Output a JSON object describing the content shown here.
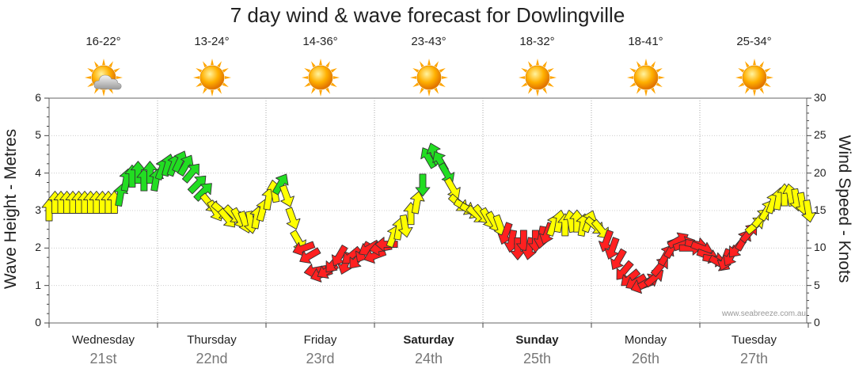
{
  "chart_data": {
    "type": "line",
    "title": "7 day wind & wave forecast for Dowlingville",
    "y_left_label": "Wave Height - Metres",
    "y_right_label": "Wind Speed - Knots",
    "y_left_range": [
      0,
      6
    ],
    "y_right_range": [
      0,
      30
    ],
    "y_left_ticks": [
      "0",
      "1",
      "2",
      "3",
      "4",
      "5",
      "6"
    ],
    "y_right_ticks": [
      "0",
      "5",
      "10",
      "15",
      "20",
      "25",
      "30"
    ],
    "credit": "www.seabreeze.com.au",
    "x_range_hours": [
      0,
      168
    ],
    "days": [
      {
        "name": "Wednesday",
        "date": "21st",
        "temp": "16-22°",
        "icon": "sun-cloud-icon",
        "bold": false
      },
      {
        "name": "Thursday",
        "date": "22nd",
        "temp": "13-24°",
        "icon": "sun-icon",
        "bold": false
      },
      {
        "name": "Friday",
        "date": "23rd",
        "temp": "14-36°",
        "icon": "sun-icon",
        "bold": false
      },
      {
        "name": "Saturday",
        "date": "24th",
        "temp": "23-43°",
        "icon": "sun-icon",
        "bold": true
      },
      {
        "name": "Sunday",
        "date": "25th",
        "temp": "18-32°",
        "icon": "sun-icon",
        "bold": true
      },
      {
        "name": "Monday",
        "date": "26th",
        "temp": "18-41°",
        "icon": "sun-icon",
        "bold": false
      },
      {
        "name": "Tuesday",
        "date": "27th",
        "temp": "25-34°",
        "icon": "sun-icon",
        "bold": false
      }
    ],
    "colors": {
      "onshore": "#ff2020",
      "cross": "#ffff00",
      "offshore": "#22dd22",
      "outline": "#333333",
      "grid": "#cccccc"
    },
    "wind_series": {
      "name": "Wind Speed",
      "unit": "knots",
      "points": [
        {
          "h": 0,
          "v": 15,
          "dir": 0,
          "c": "cross"
        },
        {
          "h": 2,
          "v": 16,
          "dir": 0,
          "c": "cross"
        },
        {
          "h": 4,
          "v": 16,
          "dir": 0,
          "c": "cross"
        },
        {
          "h": 6,
          "v": 16,
          "dir": 0,
          "c": "cross"
        },
        {
          "h": 8,
          "v": 16,
          "dir": 0,
          "c": "cross"
        },
        {
          "h": 10,
          "v": 16,
          "dir": 0,
          "c": "cross"
        },
        {
          "h": 12,
          "v": 16,
          "dir": 0,
          "c": "cross"
        },
        {
          "h": 14,
          "v": 16,
          "dir": 0,
          "c": "cross"
        },
        {
          "h": 16,
          "v": 16,
          "dir": 0,
          "c": "cross"
        },
        {
          "h": 18,
          "v": 16,
          "dir": 0,
          "c": "cross"
        },
        {
          "h": 20,
          "v": 16,
          "dir": 0,
          "c": "cross"
        },
        {
          "h": 22,
          "v": 16,
          "dir": 0,
          "c": "cross"
        },
        {
          "h": 24,
          "v": 17,
          "dir": 10,
          "c": "offshore"
        },
        {
          "h": 26,
          "v": 19,
          "dir": 10,
          "c": "offshore"
        },
        {
          "h": 28,
          "v": 19.5,
          "dir": 0,
          "c": "offshore"
        },
        {
          "h": 30,
          "v": 20,
          "dir": 0,
          "c": "offshore"
        },
        {
          "h": 32,
          "v": 19,
          "dir": 0,
          "c": "offshore"
        },
        {
          "h": 34,
          "v": 20,
          "dir": 0,
          "c": "offshore"
        },
        {
          "h": 36,
          "v": 19,
          "dir": 10,
          "c": "offshore"
        },
        {
          "h": 38,
          "v": 20.5,
          "dir": 20,
          "c": "offshore"
        },
        {
          "h": 40,
          "v": 21,
          "dir": 15,
          "c": "offshore"
        },
        {
          "h": 42,
          "v": 21,
          "dir": 20,
          "c": "offshore"
        },
        {
          "h": 44,
          "v": 21.5,
          "dir": 25,
          "c": "offshore"
        },
        {
          "h": 46,
          "v": 21,
          "dir": 30,
          "c": "offshore"
        },
        {
          "h": 48,
          "v": 20,
          "dir": 40,
          "c": "offshore"
        },
        {
          "h": 50,
          "v": 18.5,
          "dir": 45,
          "c": "offshore"
        },
        {
          "h": 52,
          "v": 17.5,
          "dir": 45,
          "c": "offshore"
        },
        {
          "h": 54,
          "v": 16,
          "dir": 140,
          "c": "cross"
        },
        {
          "h": 56,
          "v": 15,
          "dir": 150,
          "c": "cross"
        },
        {
          "h": 58,
          "v": 15,
          "dir": 130,
          "c": "cross"
        },
        {
          "h": 60,
          "v": 14,
          "dir": 140,
          "c": "cross"
        },
        {
          "h": 62,
          "v": 14.5,
          "dir": 135,
          "c": "cross"
        },
        {
          "h": 64,
          "v": 14,
          "dir": 150,
          "c": "cross"
        },
        {
          "h": 66,
          "v": 13.5,
          "dir": 160,
          "c": "cross"
        },
        {
          "h": 68,
          "v": 13.5,
          "dir": 170,
          "c": "cross"
        },
        {
          "h": 70,
          "v": 14,
          "dir": 10,
          "c": "cross"
        },
        {
          "h": 72,
          "v": 15,
          "dir": 15,
          "c": "cross"
        },
        {
          "h": 74,
          "v": 16.5,
          "dir": 10,
          "c": "cross"
        },
        {
          "h": 76,
          "v": 17.5,
          "dir": 350,
          "c": "cross"
        },
        {
          "h": 78,
          "v": 18.5,
          "dir": 30,
          "c": "offshore"
        },
        {
          "h": 80,
          "v": 17,
          "dir": 160,
          "c": "cross"
        },
        {
          "h": 82,
          "v": 14,
          "dir": 160,
          "c": "cross"
        },
        {
          "h": 84,
          "v": 11,
          "dir": 150,
          "c": "cross"
        },
        {
          "h": 86,
          "v": 10,
          "dir": 250,
          "c": "onshore"
        },
        {
          "h": 88,
          "v": 9,
          "dir": 240,
          "c": "onshore"
        },
        {
          "h": 90,
          "v": 7,
          "dir": 260,
          "c": "onshore"
        },
        {
          "h": 92,
          "v": 6.5,
          "dir": 250,
          "c": "onshore"
        },
        {
          "h": 94,
          "v": 7,
          "dir": 240,
          "c": "onshore"
        },
        {
          "h": 96,
          "v": 8,
          "dir": 220,
          "c": "onshore"
        },
        {
          "h": 98,
          "v": 9,
          "dir": 210,
          "c": "onshore"
        },
        {
          "h": 100,
          "v": 8,
          "dir": 200,
          "c": "onshore"
        },
        {
          "h": 102,
          "v": 9,
          "dir": 230,
          "c": "onshore"
        },
        {
          "h": 104,
          "v": 8.5,
          "dir": 220,
          "c": "onshore"
        },
        {
          "h": 106,
          "v": 9.5,
          "dir": 210,
          "c": "onshore"
        },
        {
          "h": 108,
          "v": 10,
          "dir": 240,
          "c": "onshore"
        },
        {
          "h": 110,
          "v": 9,
          "dir": 250,
          "c": "onshore"
        },
        {
          "h": 112,
          "v": 10,
          "dir": 260,
          "c": "onshore"
        },
        {
          "h": 114,
          "v": 10.5,
          "dir": 270,
          "c": "onshore"
        },
        {
          "h": 116,
          "v": 11.5,
          "dir": 20,
          "c": "cross"
        },
        {
          "h": 118,
          "v": 12.5,
          "dir": 10,
          "c": "cross"
        },
        {
          "h": 120,
          "v": 13,
          "dir": 170,
          "c": "cross"
        },
        {
          "h": 122,
          "v": 14.5,
          "dir": 0,
          "c": "cross"
        },
        {
          "h": 124,
          "v": 16,
          "dir": 10,
          "c": "cross"
        },
        {
          "h": 126,
          "v": 18.5,
          "dir": 180,
          "c": "offshore"
        },
        {
          "h": 128,
          "v": 22,
          "dir": 330,
          "c": "offshore"
        },
        {
          "h": 130,
          "v": 22.5,
          "dir": 340,
          "c": "offshore"
        },
        {
          "h": 132,
          "v": 21.5,
          "dir": 330,
          "c": "offshore"
        },
        {
          "h": 134,
          "v": 20,
          "dir": 150,
          "c": "offshore"
        },
        {
          "h": 136,
          "v": 18,
          "dir": 150,
          "c": "cross"
        },
        {
          "h": 138,
          "v": 16,
          "dir": 130,
          "c": "cross"
        },
        {
          "h": 140,
          "v": 15.5,
          "dir": 120,
          "c": "cross"
        },
        {
          "h": 142,
          "v": 15,
          "dir": 120,
          "c": "cross"
        },
        {
          "h": 144,
          "v": 14.5,
          "dir": 130,
          "c": "cross"
        },
        {
          "h": 146,
          "v": 14.5,
          "dir": 140,
          "c": "cross"
        },
        {
          "h": 148,
          "v": 14,
          "dir": 150,
          "c": "cross"
        },
        {
          "h": 150,
          "v": 13.5,
          "dir": 150,
          "c": "cross"
        },
        {
          "h": 152,
          "v": 13,
          "dir": 160,
          "c": "cross"
        },
        {
          "h": 154,
          "v": 12,
          "dir": 200,
          "c": "onshore"
        },
        {
          "h": 156,
          "v": 11,
          "dir": 190,
          "c": "onshore"
        },
        {
          "h": 158,
          "v": 10,
          "dir": 180,
          "c": "onshore"
        },
        {
          "h": 160,
          "v": 11,
          "dir": 180,
          "c": "onshore"
        },
        {
          "h": 162,
          "v": 10,
          "dir": 190,
          "c": "onshore"
        },
        {
          "h": 164,
          "v": 11,
          "dir": 180,
          "c": "onshore"
        },
        {
          "h": 166,
          "v": 11.5,
          "dir": 190,
          "c": "onshore"
        },
        {
          "h": 168,
          "v": 12,
          "dir": 200,
          "c": "onshore"
        },
        {
          "h": 170,
          "v": 13,
          "dir": 20,
          "c": "cross"
        },
        {
          "h": 172,
          "v": 13.5,
          "dir": 10,
          "c": "cross"
        },
        {
          "h": 174,
          "v": 13,
          "dir": 0,
          "c": "cross"
        },
        {
          "h": 176,
          "v": 13.5,
          "dir": 350,
          "c": "cross"
        },
        {
          "h": 178,
          "v": 13.5,
          "dir": 0,
          "c": "cross"
        },
        {
          "h": 180,
          "v": 13,
          "dir": 10,
          "c": "cross"
        },
        {
          "h": 182,
          "v": 13.5,
          "dir": 20,
          "c": "cross"
        },
        {
          "h": 184,
          "v": 13,
          "dir": 130,
          "c": "cross"
        },
        {
          "h": 186,
          "v": 12.5,
          "dir": 140,
          "c": "cross"
        },
        {
          "h": 188,
          "v": 11,
          "dir": 200,
          "c": "onshore"
        },
        {
          "h": 190,
          "v": 10,
          "dir": 200,
          "c": "onshore"
        },
        {
          "h": 192,
          "v": 8.5,
          "dir": 210,
          "c": "onshore"
        },
        {
          "h": 194,
          "v": 7,
          "dir": 220,
          "c": "onshore"
        },
        {
          "h": 196,
          "v": 6,
          "dir": 230,
          "c": "onshore"
        },
        {
          "h": 198,
          "v": 5.5,
          "dir": 240,
          "c": "onshore"
        },
        {
          "h": 200,
          "v": 5,
          "dir": 250,
          "c": "onshore"
        },
        {
          "h": 202,
          "v": 5.5,
          "dir": 60,
          "c": "onshore"
        },
        {
          "h": 204,
          "v": 6,
          "dir": 50,
          "c": "onshore"
        },
        {
          "h": 206,
          "v": 7.5,
          "dir": 40,
          "c": "onshore"
        },
        {
          "h": 208,
          "v": 9,
          "dir": 30,
          "c": "onshore"
        },
        {
          "h": 210,
          "v": 10,
          "dir": 30,
          "c": "onshore"
        },
        {
          "h": 212,
          "v": 11,
          "dir": 60,
          "c": "onshore"
        },
        {
          "h": 214,
          "v": 10.5,
          "dir": 70,
          "c": "onshore"
        },
        {
          "h": 216,
          "v": 10,
          "dir": 90,
          "c": "onshore"
        },
        {
          "h": 218,
          "v": 10.5,
          "dir": 100,
          "c": "onshore"
        },
        {
          "h": 220,
          "v": 10,
          "dir": 110,
          "c": "onshore"
        },
        {
          "h": 222,
          "v": 9,
          "dir": 110,
          "c": "onshore"
        },
        {
          "h": 224,
          "v": 8.5,
          "dir": 100,
          "c": "onshore"
        },
        {
          "h": 226,
          "v": 8,
          "dir": 120,
          "c": "onshore"
        },
        {
          "h": 228,
          "v": 8.5,
          "dir": 200,
          "c": "onshore"
        },
        {
          "h": 230,
          "v": 9,
          "dir": 210,
          "c": "onshore"
        },
        {
          "h": 232,
          "v": 10,
          "dir": 220,
          "c": "onshore"
        },
        {
          "h": 234,
          "v": 11,
          "dir": 30,
          "c": "onshore"
        },
        {
          "h": 236,
          "v": 12,
          "dir": 40,
          "c": "onshore"
        },
        {
          "h": 238,
          "v": 13,
          "dir": 50,
          "c": "cross"
        },
        {
          "h": 240,
          "v": 14,
          "dir": 40,
          "c": "cross"
        },
        {
          "h": 242,
          "v": 15,
          "dir": 30,
          "c": "cross"
        },
        {
          "h": 244,
          "v": 16,
          "dir": 20,
          "c": "cross"
        },
        {
          "h": 246,
          "v": 16.5,
          "dir": 10,
          "c": "cross"
        },
        {
          "h": 248,
          "v": 17,
          "dir": 0,
          "c": "cross"
        },
        {
          "h": 250,
          "v": 17,
          "dir": 350,
          "c": "cross"
        },
        {
          "h": 252,
          "v": 16.5,
          "dir": 170,
          "c": "cross"
        },
        {
          "h": 254,
          "v": 16,
          "dir": 170,
          "c": "cross"
        },
        {
          "h": 256,
          "v": 15,
          "dir": 170,
          "c": "cross"
        }
      ]
    }
  }
}
